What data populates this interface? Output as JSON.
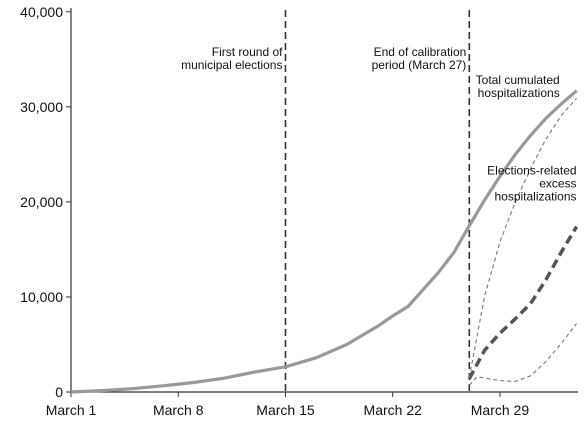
{
  "chart_data": {
    "type": "line",
    "title": "",
    "xlabel": "",
    "ylabel": "",
    "xlim": [
      0,
      33
    ],
    "ylim": [
      0,
      40000
    ],
    "grid": false,
    "x_tick_labels": [
      {
        "x": 0,
        "label": "March 1"
      },
      {
        "x": 7,
        "label": "March 8"
      },
      {
        "x": 14,
        "label": "March 15"
      },
      {
        "x": 21,
        "label": "March 22"
      },
      {
        "x": 28,
        "label": "March 29"
      }
    ],
    "y_tick_labels": [
      {
        "y": 0,
        "label": "0"
      },
      {
        "y": 10000,
        "label": "10,000"
      },
      {
        "y": 20000,
        "label": "20,000"
      },
      {
        "y": 30000,
        "label": "30,000"
      },
      {
        "y": 40000,
        "label": "40,000"
      }
    ],
    "vertical_lines": [
      {
        "x": 14,
        "annotation": [
          "First round of",
          "municipal elections"
        ]
      },
      {
        "x": 26,
        "annotation": [
          "End of calibration",
          "period (March 27)"
        ]
      }
    ],
    "series": [
      {
        "name": "Total cumulated hospitalizations",
        "style": "solid",
        "color": "#999999",
        "points": [
          [
            0,
            0
          ],
          [
            2,
            150
          ],
          [
            4,
            350
          ],
          [
            6,
            650
          ],
          [
            8,
            1000
          ],
          [
            10,
            1450
          ],
          [
            12,
            2100
          ],
          [
            14,
            2650
          ],
          [
            16,
            3600
          ],
          [
            18,
            5000
          ],
          [
            20,
            6900
          ],
          [
            21,
            8000
          ],
          [
            22,
            9000
          ],
          [
            24,
            12600
          ],
          [
            25,
            14700
          ],
          [
            26,
            17500
          ],
          [
            27,
            20200
          ],
          [
            28,
            22700
          ],
          [
            29,
            25000
          ],
          [
            30,
            27000
          ],
          [
            31,
            28800
          ],
          [
            32,
            30300
          ],
          [
            33,
            31700
          ]
        ]
      },
      {
        "name": "Elections-related excess hospitalizations",
        "style": "dashed",
        "color": "#555555",
        "points": [
          [
            26,
            1400
          ],
          [
            27,
            4400
          ],
          [
            28,
            6200
          ],
          [
            29,
            7700
          ],
          [
            30,
            9300
          ],
          [
            31,
            11800
          ],
          [
            32,
            14700
          ],
          [
            33,
            17400
          ]
        ]
      },
      {
        "name": "",
        "style": "dotted-upper",
        "color": "#777777",
        "points": [
          [
            26,
            1500
          ],
          [
            27,
            10100
          ],
          [
            28,
            15800
          ],
          [
            29,
            20000
          ],
          [
            30,
            23500
          ],
          [
            31,
            26600
          ],
          [
            32,
            29100
          ],
          [
            33,
            30900
          ]
        ]
      },
      {
        "name": "",
        "style": "dotted-lower",
        "color": "#777777",
        "points": [
          [
            26,
            700
          ],
          [
            26.5,
            1600
          ],
          [
            28,
            1200
          ],
          [
            29,
            1100
          ],
          [
            30,
            1700
          ],
          [
            31,
            3200
          ],
          [
            32,
            5100
          ],
          [
            33,
            7200
          ]
        ]
      }
    ],
    "annotations": [
      {
        "x": 31.9,
        "y": 32400,
        "anchor": "end",
        "lines": [
          "Total cumulated",
          "hospitalizations"
        ]
      },
      {
        "x": 33,
        "y": 22900,
        "anchor": "end",
        "lines": [
          "Elections-related",
          "excess",
          "hospitalizations"
        ]
      }
    ]
  }
}
